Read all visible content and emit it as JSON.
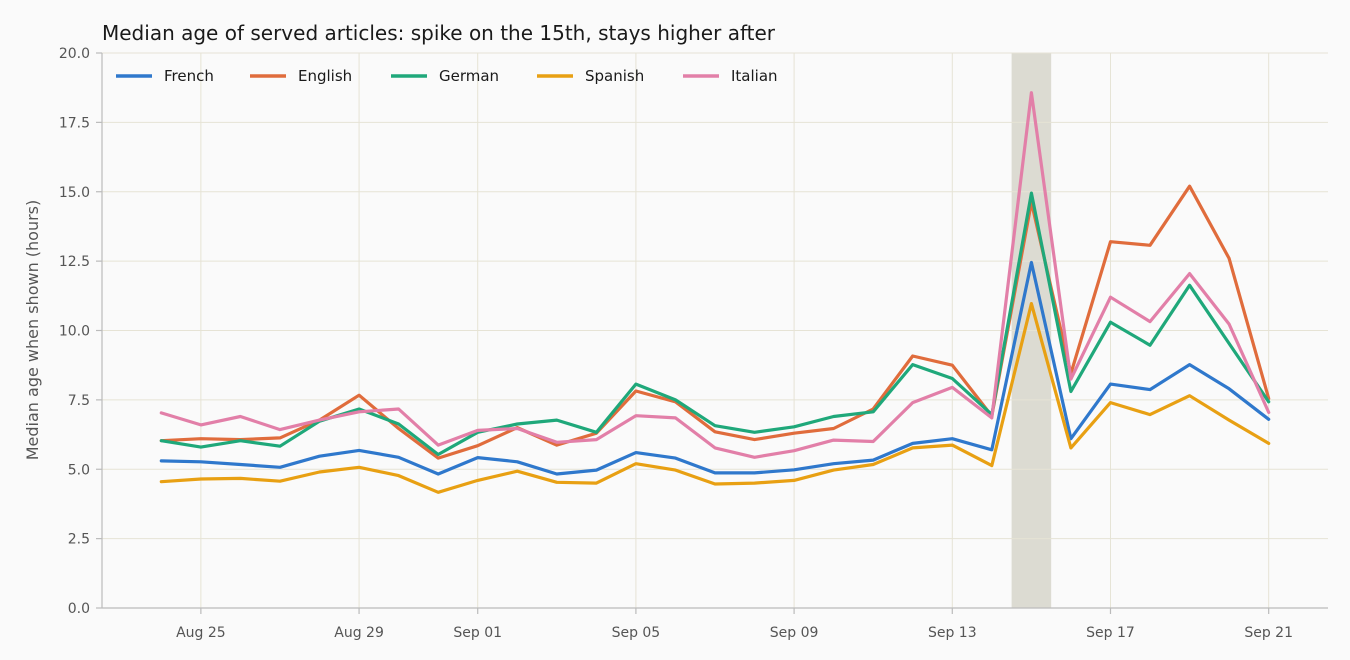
{
  "chart_data": {
    "type": "line",
    "title": "Median age of served articles: spike on the 15th, stays higher after",
    "xlabel": "",
    "ylabel": "Median age when shown (hours)",
    "ylim": [
      0,
      20
    ],
    "yticks": [
      "0.0",
      "2.5",
      "5.0",
      "7.5",
      "10.0",
      "12.5",
      "15.0",
      "17.5",
      "20.0"
    ],
    "ytick_values": [
      0,
      2.5,
      5,
      7.5,
      10,
      12.5,
      15,
      17.5,
      20
    ],
    "x": [
      "2024-08-24",
      "2024-08-25",
      "2024-08-26",
      "2024-08-27",
      "2024-08-28",
      "2024-08-29",
      "2024-08-30",
      "2024-08-31",
      "2024-09-01",
      "2024-09-02",
      "2024-09-03",
      "2024-09-04",
      "2024-09-05",
      "2024-09-06",
      "2024-09-07",
      "2024-09-08",
      "2024-09-09",
      "2024-09-10",
      "2024-09-11",
      "2024-09-12",
      "2024-09-13",
      "2024-09-14",
      "2024-09-15",
      "2024-09-16",
      "2024-09-17",
      "2024-09-18",
      "2024-09-19",
      "2024-09-20",
      "2024-09-21"
    ],
    "xlim": [
      "2024-08-22T12:00",
      "2024-09-22T12:00"
    ],
    "xtick_dates": [
      "2024-08-25",
      "2024-08-29",
      "2024-09-01",
      "2024-09-05",
      "2024-09-09",
      "2024-09-13",
      "2024-09-17",
      "2024-09-21"
    ],
    "xticks": [
      "Aug 25",
      "Aug 29",
      "Sep 01",
      "Sep 05",
      "Sep 09",
      "Sep 13",
      "Sep 17",
      "Sep 21"
    ],
    "highlight": {
      "start": "2024-09-14T12:00",
      "end": "2024-09-15T12:00",
      "color": "#dcdbd2"
    },
    "grid": true,
    "legend_position": "top-left",
    "series": [
      {
        "name": "French",
        "color": "#2f78cc",
        "values": [
          5.3,
          5.27,
          5.17,
          5.07,
          5.47,
          5.68,
          5.43,
          4.83,
          5.42,
          5.27,
          4.83,
          4.97,
          5.6,
          5.4,
          4.87,
          4.87,
          4.98,
          5.2,
          5.33,
          5.93,
          6.1,
          5.7,
          12.45,
          6.1,
          8.07,
          7.87,
          8.77,
          7.9,
          6.8
        ]
      },
      {
        "name": "English",
        "color": "#e06c3c",
        "values": [
          6.03,
          6.1,
          6.07,
          6.13,
          6.77,
          7.67,
          6.47,
          5.4,
          5.85,
          6.5,
          5.87,
          6.3,
          7.82,
          7.43,
          6.35,
          6.07,
          6.3,
          6.47,
          7.17,
          9.08,
          8.75,
          6.92,
          14.62,
          8.45,
          13.2,
          13.07,
          15.2,
          12.6,
          7.55
        ]
      },
      {
        "name": "German",
        "color": "#1fa87a",
        "values": [
          6.03,
          5.8,
          6.03,
          5.83,
          6.73,
          7.17,
          6.63,
          5.53,
          6.33,
          6.63,
          6.77,
          6.33,
          8.07,
          7.5,
          6.57,
          6.33,
          6.53,
          6.9,
          7.07,
          8.77,
          8.27,
          6.97,
          14.95,
          7.8,
          10.3,
          9.47,
          11.63,
          9.53,
          7.43
        ]
      },
      {
        "name": "Spanish",
        "color": "#e8a013",
        "values": [
          4.55,
          4.65,
          4.67,
          4.57,
          4.9,
          5.07,
          4.77,
          4.17,
          4.6,
          4.93,
          4.53,
          4.5,
          5.2,
          4.97,
          4.47,
          4.5,
          4.6,
          4.97,
          5.17,
          5.77,
          5.87,
          5.13,
          10.97,
          5.77,
          7.4,
          6.97,
          7.65,
          6.77,
          5.93
        ]
      },
      {
        "name": "Italian",
        "color": "#e27fa8",
        "values": [
          7.03,
          6.6,
          6.9,
          6.43,
          6.77,
          7.07,
          7.17,
          5.87,
          6.4,
          6.47,
          5.97,
          6.07,
          6.93,
          6.85,
          5.77,
          5.43,
          5.67,
          6.05,
          6.0,
          7.4,
          7.95,
          6.85,
          18.57,
          8.25,
          11.2,
          10.32,
          12.05,
          10.23,
          7.05
        ]
      }
    ]
  }
}
